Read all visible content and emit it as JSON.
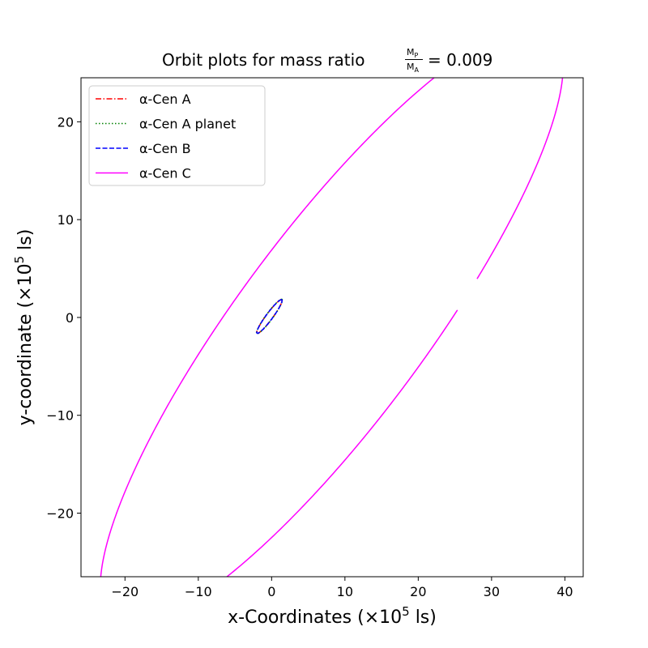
{
  "chart_data": {
    "type": "line",
    "title": {
      "prefix": "Orbit plots for mass ratio",
      "frac_num_main": "M",
      "frac_num_sub": "P",
      "frac_den_main": "M",
      "frac_den_sub": "A",
      "suffix": "= 0.009"
    },
    "xlabel": {
      "main": "x-Coordinates (×10",
      "sup": "5",
      "end": " ls)"
    },
    "ylabel": {
      "main": "y-coordinate (×10",
      "sup": "5",
      "end": " ls)"
    },
    "xlim": [
      -26,
      42.5
    ],
    "ylim": [
      -26.5,
      24.5
    ],
    "xticks": [
      -20,
      -10,
      0,
      10,
      20,
      30,
      40
    ],
    "yticks": [
      -20,
      -10,
      0,
      10,
      20
    ],
    "xtick_labels": [
      "−20",
      "−10",
      "0",
      "10",
      "20",
      "30",
      "40"
    ],
    "ytick_labels": [
      "−20",
      "−10",
      "0",
      "10",
      "20"
    ],
    "grid": false,
    "legend_position": "top-left",
    "series": [
      {
        "name": "α-Cen A",
        "color": "#ff0000",
        "dash": "dashdot",
        "ellipse": {
          "cx": -0.3,
          "cy": 0.1,
          "a": 2.4,
          "b": 0.4,
          "angle_deg": 45
        }
      },
      {
        "name": "α-Cen A planet",
        "color": "#008000",
        "dash": "dotted",
        "ellipse": {
          "cx": -0.3,
          "cy": 0.1,
          "a": 2.45,
          "b": 0.42,
          "angle_deg": 45
        }
      },
      {
        "name": "α-Cen B",
        "color": "#0000ff",
        "dash": "dashed",
        "ellipse": {
          "cx": -0.3,
          "cy": 0.1,
          "a": 2.4,
          "b": 0.4,
          "angle_deg": 45
        }
      },
      {
        "name": "α-Cen C",
        "color": "#ff00ff",
        "dash": "solid",
        "ellipse": {
          "cx": 8.2,
          "cy": -0.9,
          "a": 42.5,
          "b": 11.3,
          "angle_deg": 44
        },
        "gap_points": [
          [
            27.2,
            -1.0
          ],
          [
            30.4,
            2.1
          ]
        ]
      }
    ]
  }
}
